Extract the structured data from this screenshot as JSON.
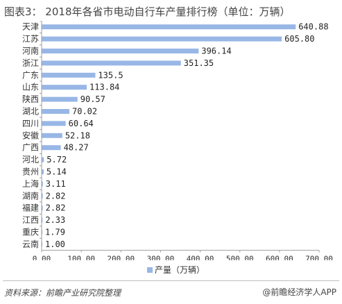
{
  "title": "图表3：  2018年各省市电动自行车产量排行榜（单位：万辆）",
  "source": "资料来源：前瞻产业研究院整理",
  "brand": "@前瞻经济学人APP",
  "watermark": "前瞻产业研究院",
  "colors": {
    "bar": "#98b7e6",
    "axis": "#9e9e9e",
    "grid": "#d9d9d9"
  },
  "chart_data": {
    "type": "bar",
    "orientation": "horizontal",
    "categories": [
      "天津",
      "江苏",
      "河南",
      "浙江",
      "广东",
      "山东",
      "陕西",
      "湖北",
      "四川",
      "安徽",
      "广西",
      "河北",
      "贵州",
      "上海",
      "湖南",
      "福建",
      "江西",
      "重庆",
      "云南"
    ],
    "series": [
      {
        "name": "产量（万辆）",
        "values": [
          640.88,
          605.8,
          396.14,
          351.35,
          135.5,
          113.84,
          90.57,
          70.02,
          60.64,
          52.18,
          48.27,
          5.72,
          5.14,
          3.11,
          2.82,
          2.82,
          2.33,
          1.79,
          1.0
        ],
        "labels": [
          "640.88",
          "605.80",
          "396.14",
          "351.35",
          "135.5",
          "113.84",
          "90.57",
          "70.02",
          "60.64",
          "52.18",
          "48.27",
          "5.72",
          "5.14",
          "3.11",
          "2.82",
          "2.82",
          "2.33",
          "1.79",
          "1.00"
        ]
      }
    ],
    "xlim": [
      0,
      700
    ],
    "xticks": [
      0,
      100,
      200,
      300,
      400,
      500,
      600,
      700
    ],
    "xtick_labels": [
      "0.00",
      "100.00",
      "200.00",
      "300.00",
      "400.00",
      "500.00",
      "600.00",
      "700.00"
    ],
    "legend_position": "bottom-center",
    "grid": false
  }
}
